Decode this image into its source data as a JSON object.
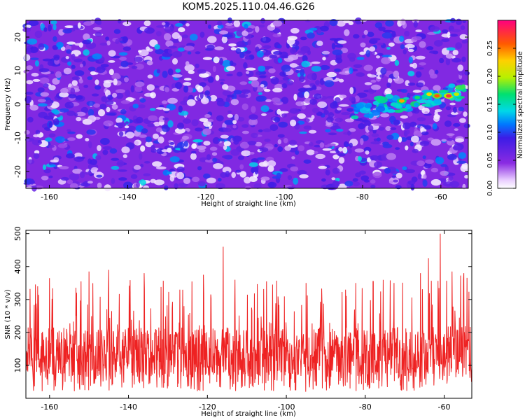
{
  "title": "KOM5.2025.110.04.46.G26",
  "chart_data": [
    {
      "type": "heatmap",
      "xlabel": "Height of straight line (km)",
      "ylabel": "Frequency (Hz)",
      "xlim": [
        -166,
        -53
      ],
      "ylim": [
        -25,
        25
      ],
      "x_ticks": [
        -160,
        -140,
        -120,
        -100,
        -80,
        -60
      ],
      "y_ticks": [
        -20,
        -10,
        0,
        10,
        20
      ],
      "colorbar": {
        "label": "Normalized spectral amplitude",
        "range": [
          0,
          0.3
        ],
        "ticks": [
          0.0,
          0.05,
          0.1,
          0.15,
          0.2,
          0.25
        ],
        "tick_labels": [
          "0.00",
          "0.05",
          "0.10",
          "0.15",
          "0.20",
          "0.25"
        ]
      },
      "background_level": 0.05,
      "speckle_peak_level": 0.11,
      "signal": {
        "description_points": [
          {
            "x": -70,
            "y": 1,
            "value": 0.24
          },
          {
            "x": -66,
            "y": 2,
            "value": 0.17
          },
          {
            "x": -63,
            "y": 3,
            "value": 0.22
          },
          {
            "x": -61,
            "y": 2.5,
            "value": 0.26
          },
          {
            "x": -58,
            "y": 2.5,
            "value": 0.28
          },
          {
            "x": -56,
            "y": 3,
            "value": 0.2
          }
        ]
      }
    },
    {
      "type": "line",
      "xlabel": "Height of straight line (km)",
      "ylabel": "SNR (10 * v/v)",
      "xlim": [
        -166,
        -53
      ],
      "ylim": [
        0,
        510
      ],
      "x_ticks": [
        -160,
        -140,
        -120,
        -100,
        -80,
        -60
      ],
      "y_ticks": [
        100,
        200,
        300,
        400,
        500
      ],
      "color": "#ee2222",
      "typical_mean": 140,
      "notable_peaks": [
        {
          "x": -163,
          "y": 340
        },
        {
          "x": -160,
          "y": 365
        },
        {
          "x": -152,
          "y": 355
        },
        {
          "x": -150,
          "y": 385
        },
        {
          "x": -145,
          "y": 390
        },
        {
          "x": -136,
          "y": 380
        },
        {
          "x": -127,
          "y": 330
        },
        {
          "x": -121,
          "y": 375
        },
        {
          "x": -116,
          "y": 460
        },
        {
          "x": -113,
          "y": 360
        },
        {
          "x": -105,
          "y": 355
        },
        {
          "x": -95,
          "y": 350
        },
        {
          "x": -85,
          "y": 330
        },
        {
          "x": -78,
          "y": 355
        },
        {
          "x": -66,
          "y": 380
        },
        {
          "x": -64,
          "y": 425
        },
        {
          "x": -61,
          "y": 500
        },
        {
          "x": -58,
          "y": 385
        },
        {
          "x": -55,
          "y": 380
        }
      ]
    }
  ]
}
